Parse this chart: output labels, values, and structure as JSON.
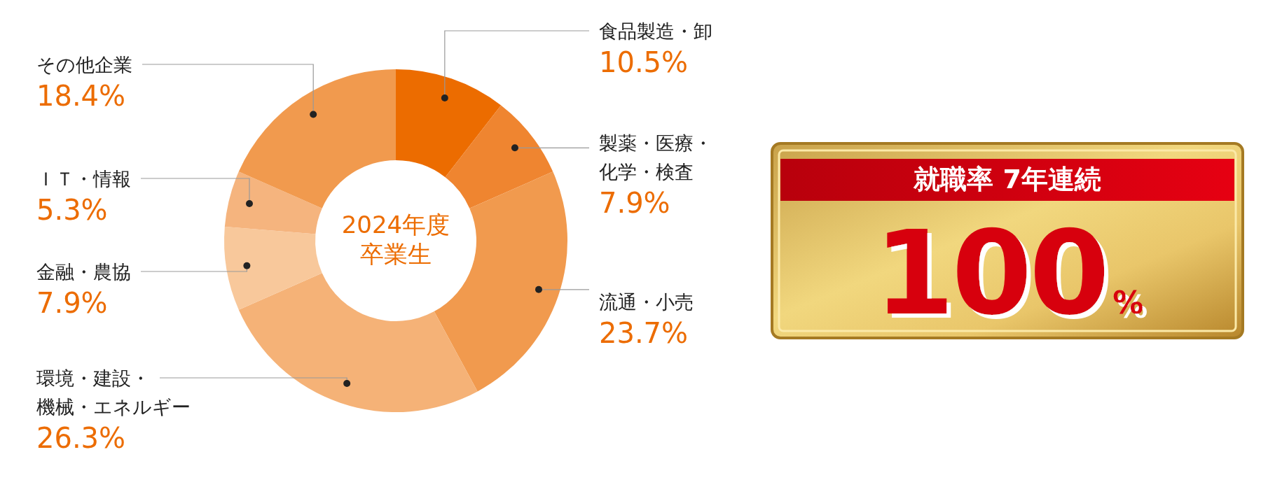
{
  "chart_data": [
    {
      "type": "donut",
      "title": "2024年度卒業生",
      "categories": [
        "食品製造・卸",
        "製薬・医療・化学・検査",
        "流通・小売",
        "環境・建設・機械・エネルギー",
        "金融・農協",
        "ＩＴ・情報",
        "その他企業"
      ],
      "values": [
        10.5,
        7.9,
        23.7,
        26.3,
        7.9,
        5.3,
        18.4
      ],
      "value_labels": [
        "10.5%",
        "7.9%",
        "23.7%",
        "26.3%",
        "7.9%",
        "5.3%",
        "18.4%"
      ],
      "colors": [
        "#ec6c00",
        "#ef8530",
        "#f19a4e",
        "#f5b277",
        "#f8c89b",
        "#f5b47e",
        "#f19a4e"
      ]
    },
    {
      "type": "other",
      "title": "就職率 7年連続",
      "annotations": [
        "100%"
      ]
    }
  ]
}
